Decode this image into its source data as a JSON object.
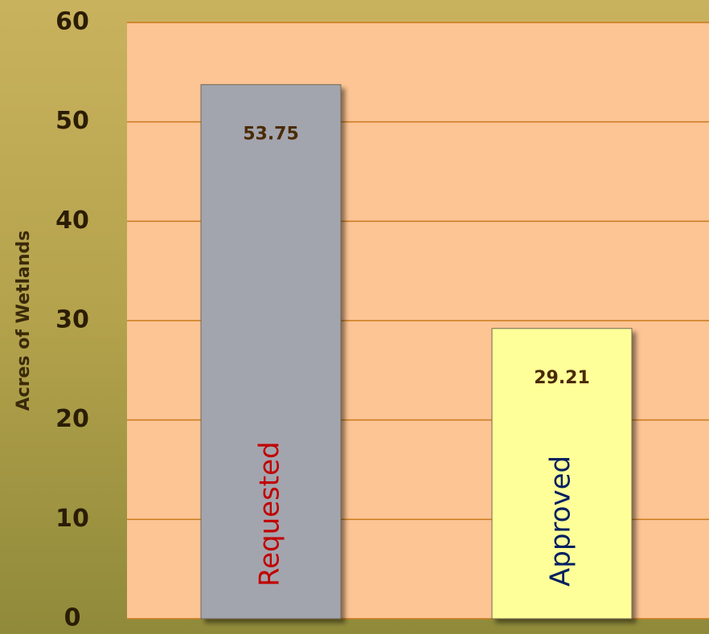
{
  "chart_data": {
    "type": "bar",
    "y_label": "Acres of Wetlands",
    "categories": [
      "Requested",
      "Approved"
    ],
    "values": [
      53.75,
      29.21
    ],
    "colors": [
      "#a3a5ae",
      "#ffff99"
    ],
    "label_colors": [
      "#c00000",
      "#002060"
    ],
    "ylim": [
      0,
      60
    ],
    "yticks": [
      0,
      10,
      20,
      30,
      40,
      50,
      60
    ],
    "grid": true
  }
}
